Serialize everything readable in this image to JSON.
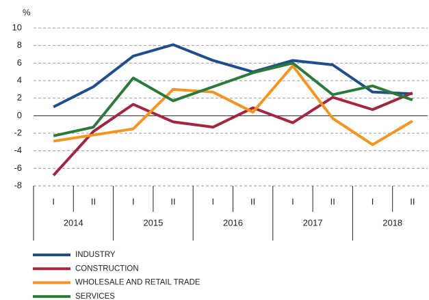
{
  "chart_data": {
    "type": "line",
    "y_unit": "%",
    "categories": [
      "I",
      "II",
      "I",
      "II",
      "I",
      "II",
      "I",
      "II",
      "I",
      "II"
    ],
    "groups": [
      "2014",
      "2015",
      "2016",
      "2017",
      "2018"
    ],
    "series": [
      {
        "name": "INDUSTRY",
        "color": "#1f4e8c",
        "values": [
          1.0,
          3.3,
          6.8,
          8.1,
          6.3,
          5.0,
          6.3,
          5.8,
          2.7,
          2.5
        ]
      },
      {
        "name": "CONSTRUCTION",
        "color": "#a3253f",
        "values": [
          -6.8,
          -1.8,
          1.3,
          -0.7,
          -1.3,
          0.9,
          -0.8,
          2.1,
          0.7,
          2.6
        ]
      },
      {
        "name": "WHOLESALE AND RETAIL TRADE",
        "color": "#f7941d",
        "values": [
          -2.9,
          -2.2,
          -1.5,
          3.0,
          2.7,
          0.4,
          5.7,
          -0.3,
          -3.3,
          -0.6
        ]
      },
      {
        "name": "SERVICES",
        "color": "#2b7a3a",
        "values": [
          -2.3,
          -1.3,
          4.3,
          1.7,
          3.3,
          4.9,
          6.0,
          2.4,
          3.4,
          1.8
        ]
      }
    ],
    "ylim": [
      -8,
      10
    ],
    "yticks": [
      -8,
      -6,
      -4,
      -2,
      0,
      2,
      4,
      6,
      8,
      10
    ],
    "grid": true
  }
}
